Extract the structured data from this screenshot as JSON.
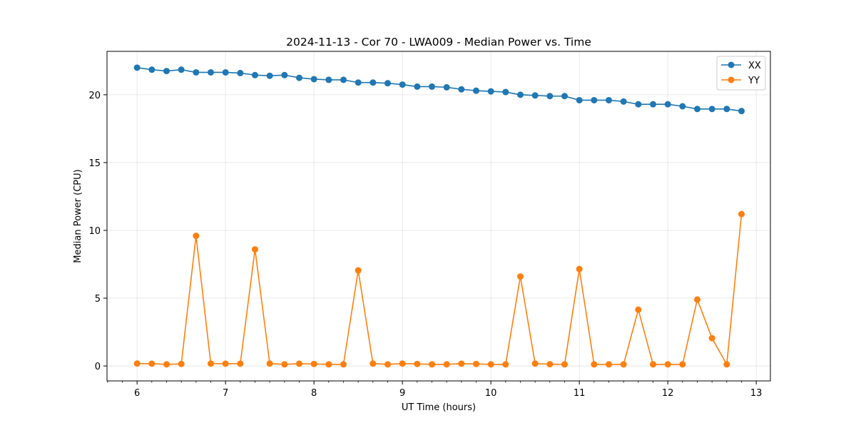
{
  "chart_data": {
    "type": "line",
    "title": "2024-11-13 - Cor 70 - LWA009 - Median Power vs. Time",
    "xlabel": "UT Time (hours)",
    "ylabel": "Median Power (CPU)",
    "xlim": [
      5.66,
      13.16
    ],
    "ylim": [
      -1.1,
      23.2
    ],
    "xticks": [
      6,
      7,
      8,
      9,
      10,
      11,
      12,
      13
    ],
    "yticks": [
      0,
      5,
      10,
      15,
      20
    ],
    "grid": true,
    "legend_position": "top-right",
    "x": [
      6.0,
      6.1667,
      6.3333,
      6.5,
      6.6667,
      6.8333,
      7.0,
      7.1667,
      7.3333,
      7.5,
      7.6667,
      7.8333,
      8.0,
      8.1667,
      8.3333,
      8.5,
      8.6667,
      8.8333,
      9.0,
      9.1667,
      9.3333,
      9.5,
      9.6667,
      9.8333,
      10.0,
      10.1667,
      10.3333,
      10.5,
      10.6667,
      10.8333,
      11.0,
      11.1667,
      11.3333,
      11.5,
      11.6667,
      11.8333,
      12.0,
      12.1667,
      12.3333,
      12.5,
      12.6667,
      12.8333
    ],
    "series": [
      {
        "name": "XX",
        "color": "#1f77b4",
        "values": [
          22.0,
          21.85,
          21.75,
          21.85,
          21.65,
          21.65,
          21.65,
          21.6,
          21.45,
          21.4,
          21.45,
          21.25,
          21.15,
          21.1,
          21.1,
          20.9,
          20.9,
          20.85,
          20.75,
          20.6,
          20.6,
          20.55,
          20.4,
          20.3,
          20.25,
          20.2,
          20.0,
          19.95,
          19.9,
          19.9,
          19.6,
          19.6,
          19.6,
          19.5,
          19.3,
          19.3,
          19.3,
          19.15,
          18.95,
          18.95,
          18.95,
          18.8
        ]
      },
      {
        "name": "YY",
        "color": "#ff7f0e",
        "values": [
          0.18,
          0.17,
          0.12,
          0.15,
          9.6,
          0.18,
          0.17,
          0.17,
          8.6,
          0.18,
          0.12,
          0.17,
          0.15,
          0.12,
          0.12,
          7.05,
          0.18,
          0.12,
          0.18,
          0.15,
          0.12,
          0.12,
          0.17,
          0.15,
          0.12,
          0.12,
          6.6,
          0.18,
          0.13,
          0.12,
          7.15,
          0.12,
          0.12,
          0.12,
          4.15,
          0.12,
          0.12,
          0.12,
          4.9,
          2.05,
          0.12,
          11.2
        ]
      }
    ]
  }
}
